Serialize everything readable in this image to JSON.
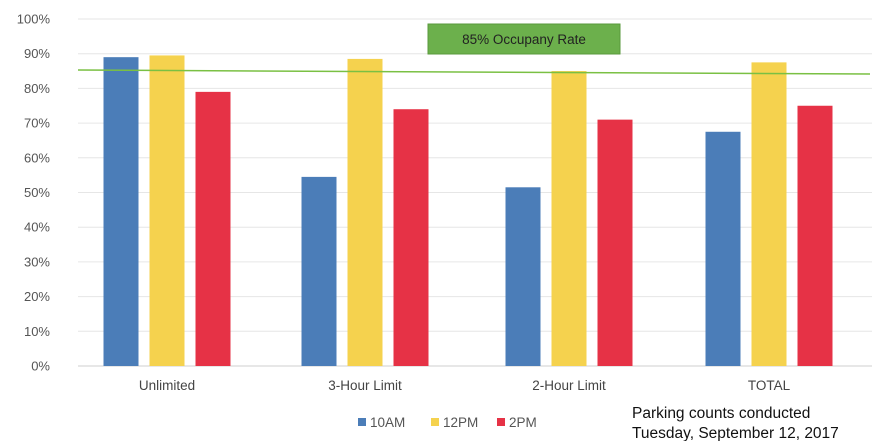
{
  "chart_data": {
    "type": "bar",
    "title": "",
    "xlabel": "",
    "ylabel": "",
    "categories": [
      "Unlimited",
      "3-Hour Limit",
      "2-Hour Limit",
      "TOTAL"
    ],
    "series": [
      {
        "name": "10AM",
        "color": "#4b7db8",
        "values": [
          0.89,
          0.545,
          0.515,
          0.675
        ]
      },
      {
        "name": "12PM",
        "color": "#f5d24e",
        "values": [
          0.895,
          0.885,
          0.85,
          0.875
        ]
      },
      {
        "name": "2PM",
        "color": "#e63246",
        "values": [
          0.79,
          0.74,
          0.71,
          0.75
        ]
      }
    ],
    "ylim": [
      0,
      1
    ],
    "yticks": [
      0,
      0.1,
      0.2,
      0.3,
      0.4,
      0.5,
      0.6,
      0.7,
      0.8,
      0.9,
      1.0
    ],
    "ytick_labels": [
      "0%",
      "10%",
      "20%",
      "30%",
      "40%",
      "50%",
      "60%",
      "70%",
      "80%",
      "90%",
      "100%"
    ],
    "grid": true,
    "legend_position": "bottom",
    "reference_line": {
      "value": 0.85,
      "label": "85% Occupany Rate",
      "color": "#7ac043",
      "label_box_color": "#6cb04c"
    }
  },
  "note": {
    "line1": "Parking counts conducted",
    "line2": "Tuesday, September 12, 2017"
  }
}
